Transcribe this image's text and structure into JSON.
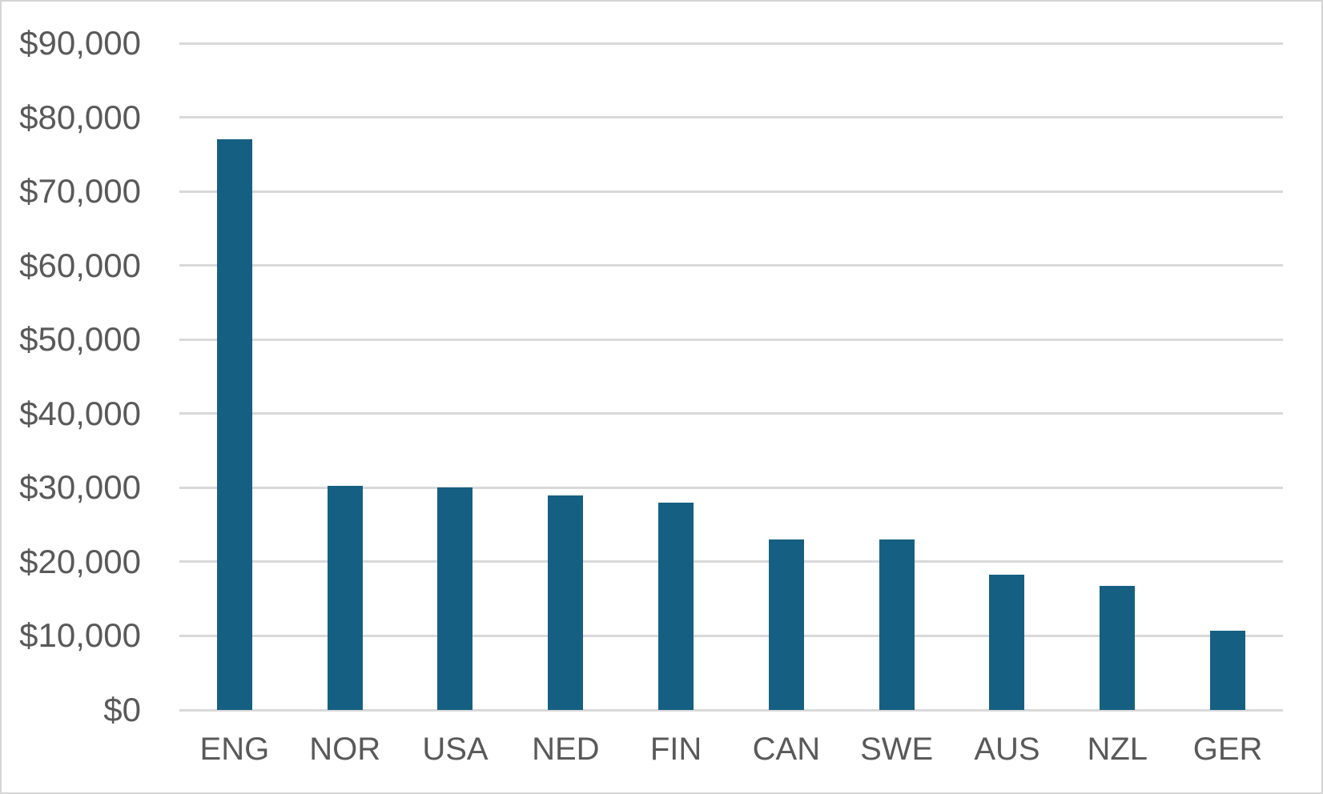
{
  "chart_data": {
    "type": "bar",
    "title": "",
    "xlabel": "",
    "ylabel": "",
    "categories": [
      "ENG",
      "NOR",
      "USA",
      "NED",
      "FIN",
      "CAN",
      "SWE",
      "AUS",
      "NZL",
      "GER"
    ],
    "values": [
      77000,
      30300,
      30000,
      29000,
      28000,
      23000,
      23000,
      18300,
      16700,
      10700
    ],
    "ylim": [
      0,
      90000
    ],
    "ytick_step": 10000,
    "y_ticks": [
      {
        "value": 0,
        "label": "$0"
      },
      {
        "value": 10000,
        "label": "$10,000"
      },
      {
        "value": 20000,
        "label": "$20,000"
      },
      {
        "value": 30000,
        "label": "$30,000"
      },
      {
        "value": 40000,
        "label": "$40,000"
      },
      {
        "value": 50000,
        "label": "$50,000"
      },
      {
        "value": 60000,
        "label": "$60,000"
      },
      {
        "value": 70000,
        "label": "$70,000"
      },
      {
        "value": 80000,
        "label": "$80,000"
      },
      {
        "value": 90000,
        "label": "$90,000"
      }
    ],
    "grid": true,
    "legend": false,
    "colors": {
      "bar": "#156082",
      "gridline": "#d9d9d9",
      "tick_label": "#595959",
      "background": "#ffffff",
      "border": "#d4d4d4"
    }
  }
}
